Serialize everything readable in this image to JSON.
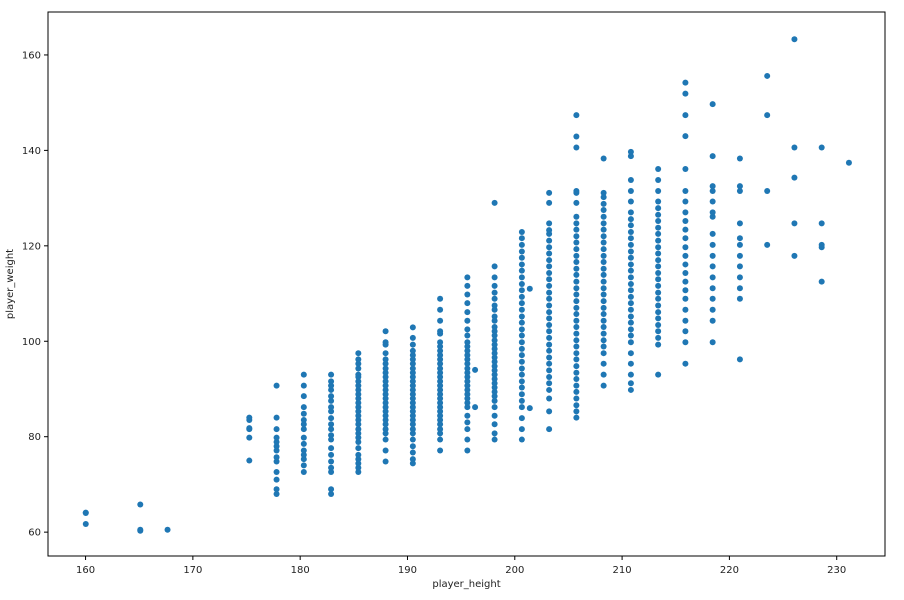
{
  "chart_data": {
    "type": "scatter",
    "title": "",
    "xlabel": "player_height",
    "ylabel": "player_weight",
    "xlim": [
      156.5,
      234.5
    ],
    "ylim": [
      55,
      169
    ],
    "xticks": [
      160,
      170,
      180,
      190,
      200,
      210,
      220,
      230
    ],
    "yticks": [
      60,
      80,
      100,
      120,
      140,
      160
    ],
    "grid": false,
    "marker_color": "#1f77b4",
    "series": [
      {
        "columns": [
          {
            "x": 160.02,
            "y": [
              61.7,
              64.0,
              64.1
            ]
          },
          {
            "x": 165.1,
            "y": [
              60.3,
              60.5,
              65.8
            ]
          },
          {
            "x": 167.64,
            "y": [
              60.5
            ]
          },
          {
            "x": 175.26,
            "y": [
              75.0,
              79.8,
              81.6,
              81.8,
              83.5,
              84.0
            ]
          },
          {
            "x": 177.8,
            "y": [
              68.0,
              69.0,
              71.0,
              72.6,
              74.8,
              75.7,
              77.1,
              78.0,
              78.9,
              79.8,
              81.6,
              84.0,
              90.7
            ]
          },
          {
            "x": 180.34,
            "y": [
              72.6,
              74.0,
              75.3,
              76.2,
              77.1,
              78.5,
              79.8,
              81.6,
              82.6,
              83.5,
              84.8,
              86.2,
              88.5,
              90.7,
              93.0
            ]
          },
          {
            "x": 182.88,
            "y": [
              68.0,
              69.0,
              72.6,
              73.5,
              74.8,
              76.2,
              77.6,
              79.4,
              80.3,
              81.6,
              82.6,
              83.9,
              85.3,
              86.2,
              87.5,
              88.5,
              89.8,
              90.7,
              91.6,
              93.0
            ]
          },
          {
            "x": 185.42,
            "y": [
              72.6,
              73.5,
              74.4,
              75.3,
              76.2,
              77.6,
              78.9,
              79.8,
              80.7,
              81.6,
              82.6,
              83.5,
              84.4,
              85.3,
              86.2,
              87.1,
              88.0,
              88.9,
              89.8,
              90.7,
              91.6,
              92.5,
              93.0,
              94.3,
              95.3,
              96.2,
              97.5
            ]
          },
          {
            "x": 187.96,
            "y": [
              74.8,
              77.1,
              79.4,
              80.7,
              81.6,
              82.6,
              83.5,
              84.4,
              85.3,
              86.2,
              87.1,
              88.0,
              88.9,
              89.8,
              90.7,
              91.6,
              92.5,
              93.4,
              94.3,
              95.3,
              96.2,
              97.5,
              99.3,
              99.8,
              102.1
            ]
          },
          {
            "x": 190.5,
            "y": [
              74.4,
              75.3,
              76.7,
              78.0,
              79.4,
              80.7,
              81.6,
              82.6,
              83.5,
              84.4,
              85.3,
              86.2,
              87.1,
              88.0,
              88.9,
              89.8,
              90.7,
              91.6,
              92.5,
              93.4,
              94.3,
              95.3,
              96.2,
              97.1,
              98.0,
              99.3,
              100.7,
              102.9
            ]
          },
          {
            "x": 193.04,
            "y": [
              77.1,
              79.4,
              80.7,
              81.6,
              82.6,
              83.5,
              84.4,
              85.3,
              86.2,
              87.1,
              88.0,
              88.9,
              89.8,
              90.7,
              91.6,
              92.5,
              93.4,
              94.3,
              95.3,
              96.2,
              97.1,
              98.0,
              98.9,
              99.8,
              101.6,
              102.1,
              104.3,
              106.6,
              108.9
            ]
          },
          {
            "x": 195.58,
            "y": [
              77.1,
              79.4,
              81.6,
              83.0,
              84.4,
              86.2,
              87.1,
              88.0,
              88.9,
              89.8,
              90.7,
              91.6,
              92.5,
              93.4,
              94.3,
              95.3,
              96.2,
              97.1,
              98.0,
              98.9,
              99.8,
              101.2,
              102.5,
              104.3,
              106.1,
              108.0,
              109.8,
              111.6,
              113.4
            ]
          },
          {
            "x": 196.3,
            "y": [
              86.2,
              94.0
            ]
          },
          {
            "x": 198.12,
            "y": [
              79.4,
              80.7,
              82.6,
              84.4,
              86.2,
              87.5,
              88.5,
              89.4,
              90.3,
              91.2,
              92.1,
              93.0,
              93.9,
              94.8,
              95.7,
              96.6,
              97.5,
              98.4,
              99.3,
              100.2,
              101.2,
              102.1,
              103.0,
              104.3,
              105.2,
              106.6,
              107.5,
              108.9,
              110.2,
              111.6,
              113.4,
              115.7,
              129.0
            ]
          },
          {
            "x": 200.66,
            "y": [
              79.4,
              81.6,
              83.9,
              86.2,
              87.5,
              88.9,
              90.3,
              91.6,
              93.0,
              94.3,
              95.7,
              97.1,
              98.4,
              99.8,
              101.2,
              102.5,
              103.9,
              105.2,
              106.6,
              108.0,
              109.3,
              110.7,
              112.0,
              113.4,
              114.8,
              116.1,
              117.5,
              118.8,
              120.2,
              121.6,
              122.9
            ]
          },
          {
            "x": 201.4,
            "y": [
              86.0,
              111.0
            ]
          },
          {
            "x": 203.2,
            "y": [
              81.6,
              85.3,
              88.0,
              89.8,
              91.2,
              92.5,
              93.9,
              95.3,
              96.6,
              98.0,
              99.3,
              100.7,
              102.1,
              103.4,
              104.8,
              106.1,
              107.5,
              108.9,
              110.2,
              111.6,
              113.0,
              114.3,
              115.7,
              117.0,
              118.4,
              119.7,
              121.1,
              122.5,
              123.3,
              124.7,
              129.0,
              131.1
            ]
          },
          {
            "x": 205.74,
            "y": [
              84.0,
              85.3,
              86.6,
              88.0,
              89.4,
              90.7,
              92.1,
              93.4,
              94.8,
              96.2,
              97.5,
              98.9,
              100.2,
              101.6,
              103.0,
              104.3,
              105.7,
              107.0,
              108.4,
              109.8,
              111.1,
              112.5,
              113.9,
              115.2,
              116.6,
              117.9,
              119.3,
              120.7,
              122.0,
              123.4,
              124.7,
              126.1,
              129.0,
              131.1,
              131.5,
              140.6,
              142.9,
              147.4
            ]
          },
          {
            "x": 208.28,
            "y": [
              90.7,
              93.0,
              95.3,
              97.5,
              98.9,
              100.2,
              101.6,
              103.0,
              104.3,
              105.7,
              107.0,
              108.4,
              109.8,
              111.1,
              112.5,
              113.9,
              115.2,
              116.6,
              117.9,
              119.3,
              120.7,
              122.0,
              123.4,
              124.7,
              126.1,
              127.5,
              128.8,
              130.2,
              131.1,
              138.3
            ]
          },
          {
            "x": 210.82,
            "y": [
              89.8,
              91.2,
              93.0,
              95.3,
              97.5,
              99.8,
              101.2,
              102.5,
              103.9,
              105.2,
              106.6,
              108.0,
              109.3,
              110.7,
              112.0,
              113.4,
              114.8,
              116.1,
              117.5,
              118.8,
              120.2,
              121.6,
              122.9,
              124.3,
              125.6,
              127.0,
              129.3,
              131.5,
              133.8,
              138.8,
              139.7
            ]
          },
          {
            "x": 213.36,
            "y": [
              93.0,
              99.3,
              100.7,
              102.1,
              103.4,
              104.8,
              106.1,
              107.5,
              108.9,
              110.2,
              111.6,
              113.0,
              114.3,
              115.7,
              117.0,
              118.4,
              119.7,
              121.1,
              122.5,
              123.8,
              125.2,
              126.5,
              127.9,
              129.3,
              131.5,
              133.8,
              136.1
            ]
          },
          {
            "x": 215.9,
            "y": [
              95.3,
              99.8,
              102.1,
              104.3,
              106.6,
              108.9,
              110.7,
              112.5,
              114.3,
              116.1,
              117.9,
              119.7,
              121.6,
              123.4,
              125.2,
              127.0,
              129.3,
              131.5,
              136.1,
              143.0,
              147.4,
              151.9,
              154.2
            ]
          },
          {
            "x": 218.44,
            "y": [
              99.8,
              104.3,
              106.6,
              108.9,
              111.1,
              113.4,
              115.7,
              117.9,
              120.2,
              122.5,
              126.1,
              127.0,
              129.3,
              131.5,
              132.5,
              138.8,
              149.7
            ]
          },
          {
            "x": 220.98,
            "y": [
              96.2,
              108.9,
              111.1,
              113.4,
              115.7,
              117.9,
              120.2,
              121.6,
              124.7,
              131.5,
              132.5,
              138.3
            ]
          },
          {
            "x": 223.52,
            "y": [
              120.2,
              131.5,
              147.4,
              155.6
            ]
          },
          {
            "x": 226.06,
            "y": [
              117.9,
              124.7,
              134.3,
              140.6,
              163.3
            ]
          },
          {
            "x": 228.6,
            "y": [
              112.5,
              119.7,
              120.2,
              124.7,
              140.6
            ]
          },
          {
            "x": 231.14,
            "y": [
              137.4
            ]
          }
        ]
      }
    ]
  }
}
